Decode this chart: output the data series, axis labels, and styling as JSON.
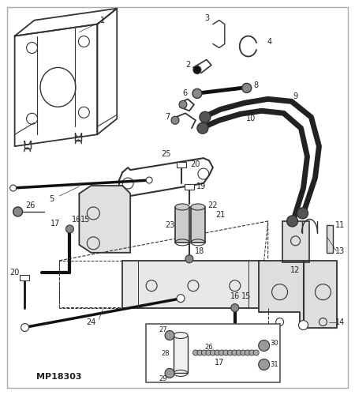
{
  "bg_color": "#ffffff",
  "line_color": "#333333",
  "dark_color": "#111111",
  "label_color": "#222222",
  "fig_width": 4.5,
  "fig_height": 5.0,
  "dpi": 100,
  "mp_label": "MP18303",
  "border": true
}
